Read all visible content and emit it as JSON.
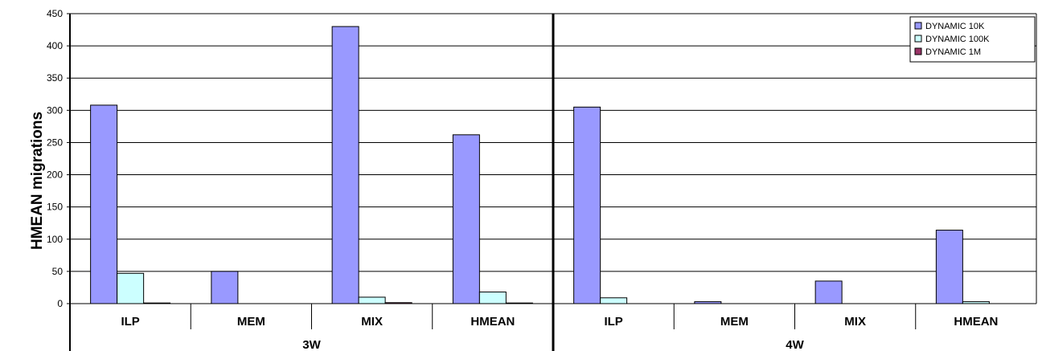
{
  "chart_data": {
    "type": "bar",
    "ylabel": "HMEAN migrations",
    "xlabel": "",
    "ylim": [
      0,
      450
    ],
    "yticks": [
      0,
      50,
      100,
      150,
      200,
      250,
      300,
      350,
      400,
      450
    ],
    "grid": true,
    "legend_position": "top-right",
    "groups": [
      "3W",
      "4W"
    ],
    "categories": [
      "ILP",
      "MEM",
      "MIX",
      "HMEAN"
    ],
    "series": [
      {
        "name": "DYNAMIC 10K",
        "color": "#9999ff",
        "values": [
          [
            308,
            50,
            430,
            262
          ],
          [
            305,
            3,
            35,
            114
          ]
        ]
      },
      {
        "name": "DYNAMIC 100K",
        "color": "#ccffff",
        "values": [
          [
            47,
            0,
            10,
            18
          ],
          [
            9,
            0,
            0,
            3
          ]
        ]
      },
      {
        "name": "DYNAMIC 1M",
        "color": "#993366",
        "values": [
          [
            1,
            0,
            1.5,
            1
          ],
          [
            0,
            0,
            0,
            0
          ]
        ]
      }
    ]
  }
}
